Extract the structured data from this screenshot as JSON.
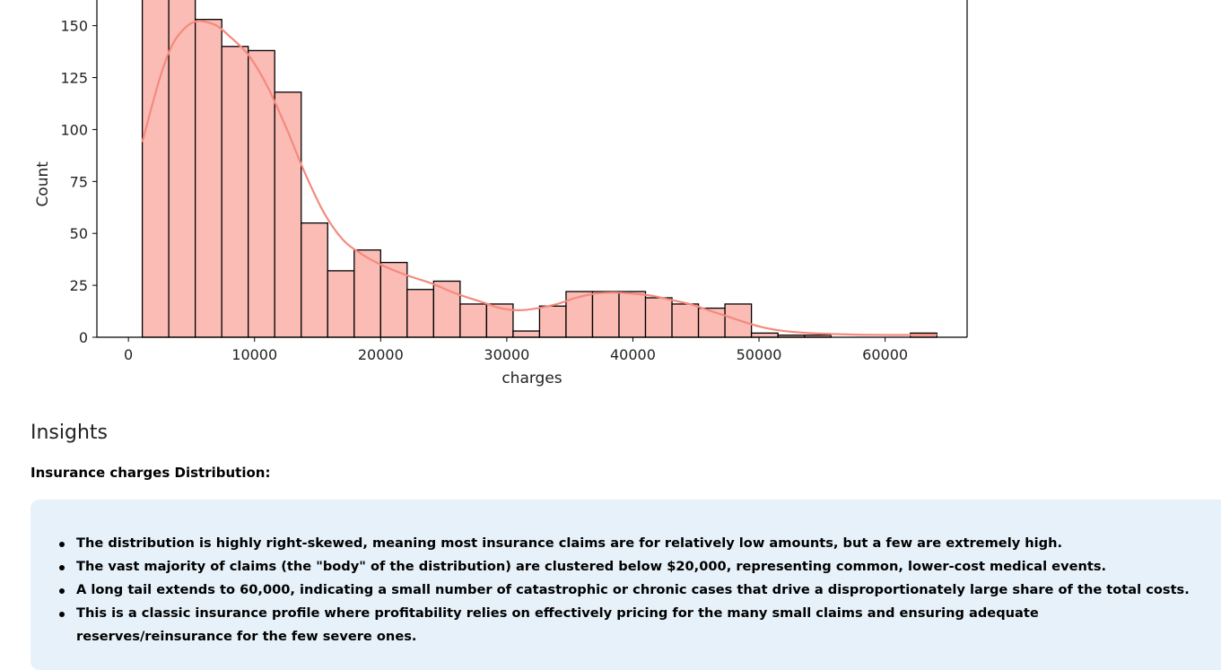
{
  "chart_data": {
    "type": "bar",
    "subtype": "histogram-with-kde",
    "xlabel": "charges",
    "ylabel": "Count",
    "bar_color": "#fbbcb6",
    "edge_color": "#000000",
    "kde_color": "#f48a7e",
    "xlim": [
      -2500,
      66500
    ],
    "ylim": [
      0,
      171
    ],
    "x_ticks": [
      "0",
      "10000",
      "20000",
      "30000",
      "40000",
      "50000",
      "60000"
    ],
    "y_ticks": [
      "0",
      "25",
      "50",
      "75",
      "100",
      "125",
      "150"
    ],
    "bin_edges": [
      1100,
      3200,
      5300,
      7400,
      9500,
      11600,
      13700,
      15800,
      17900,
      20000,
      22100,
      24200,
      26300,
      28400,
      30500,
      32600,
      34700,
      36800,
      38900,
      41000,
      43100,
      45200,
      47300,
      49400,
      51500,
      53600,
      55700,
      57800,
      59900,
      62000,
      64100
    ],
    "counts": [
      175,
      175,
      153,
      140,
      138,
      118,
      55,
      32,
      42,
      36,
      23,
      27,
      16,
      16,
      3,
      15,
      22,
      22,
      22,
      19,
      16,
      14,
      16,
      2,
      1,
      1,
      0,
      0,
      0,
      2
    ],
    "kde": {
      "x": [
        1100,
        2500,
        3500,
        4500,
        5300,
        6000,
        7000,
        8000,
        9500,
        11000,
        12500,
        14000,
        15500,
        17000,
        18500,
        20000,
        22000,
        24000,
        26000,
        28000,
        29500,
        31000,
        32500,
        34000,
        35500,
        37000,
        38500,
        40000,
        41500,
        43000,
        44500,
        46000,
        47500,
        49000,
        50500,
        52000,
        54000,
        56000,
        58000,
        60000,
        62000,
        64100
      ],
      "y": [
        94,
        125,
        141,
        149,
        152,
        152,
        150,
        145,
        136,
        121,
        101,
        79,
        60,
        47,
        40,
        35,
        30,
        26,
        21,
        17,
        14,
        13,
        14,
        16,
        19,
        21,
        21.5,
        21,
        20,
        18,
        16,
        13,
        10,
        7,
        4.5,
        3,
        2,
        1.5,
        1.2,
        1.1,
        1.1,
        1.2
      ]
    }
  },
  "insights": {
    "heading": "Insights",
    "subheading": "Insurance charges Distribution:",
    "bullets": [
      "The distribution is highly right-skewed, meaning most insurance claims are for relatively low amounts, but a few are extremely high.",
      "The vast majority of claims (the \"body\" of the distribution) are clustered below $20,000, representing common, lower-cost medical events.",
      "A long tail extends to 60,000, indicating a small number of catastrophic or chronic cases that drive a disproportionately large share of the total costs.",
      "This is a classic insurance profile where profitability relies on effectively pricing for the many small claims and ensuring adequate reserves/reinsurance for the few severe ones."
    ],
    "box_color": "#e6f1f9"
  }
}
